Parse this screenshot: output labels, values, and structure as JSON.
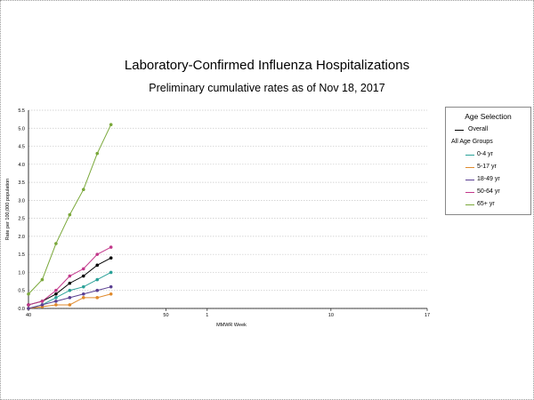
{
  "chart_data": {
    "type": "line",
    "title": "Laboratory-Confirmed Influenza Hospitalizations",
    "subtitle": "Preliminary cumulative rates as of Nov 18, 2017",
    "xlabel": "MMWR Week",
    "ylabel": "Rate per 100,000 population",
    "x_ticks": [
      "40",
      "50",
      "1",
      "10",
      "17"
    ],
    "y_ticks": [
      "0.0",
      "0.5",
      "1.0",
      "1.5",
      "2.0",
      "2.5",
      "3.0",
      "3.5",
      "4.0",
      "4.5",
      "5.0",
      "5.5"
    ],
    "ylim": [
      0,
      5.5
    ],
    "grid": true,
    "legend_position": "right",
    "legend_title": "Age Selection",
    "legend_group_label": "All Age Groups",
    "x": [
      40,
      41,
      42,
      43,
      44,
      45,
      46
    ],
    "series": [
      {
        "name": "Overall",
        "color": "#000000",
        "values": [
          0.1,
          0.2,
          0.4,
          0.7,
          0.9,
          1.2,
          1.4
        ]
      },
      {
        "name": "0-4 yr",
        "color": "#2aa198",
        "values": [
          0.0,
          0.1,
          0.3,
          0.5,
          0.6,
          0.8,
          1.0
        ]
      },
      {
        "name": "5-17 yr",
        "color": "#e08a2c",
        "values": [
          0.0,
          0.05,
          0.1,
          0.1,
          0.3,
          0.3,
          0.4
        ]
      },
      {
        "name": "18-49 yr",
        "color": "#5a3f91",
        "values": [
          0.0,
          0.1,
          0.2,
          0.3,
          0.4,
          0.5,
          0.6
        ]
      },
      {
        "name": "50-64 yr",
        "color": "#c2378a",
        "values": [
          0.1,
          0.2,
          0.5,
          0.9,
          1.1,
          1.5,
          1.7
        ]
      },
      {
        "name": "65+ yr",
        "color": "#7aa83a",
        "values": [
          0.4,
          0.8,
          1.8,
          2.6,
          3.3,
          4.3,
          5.1
        ]
      }
    ]
  }
}
